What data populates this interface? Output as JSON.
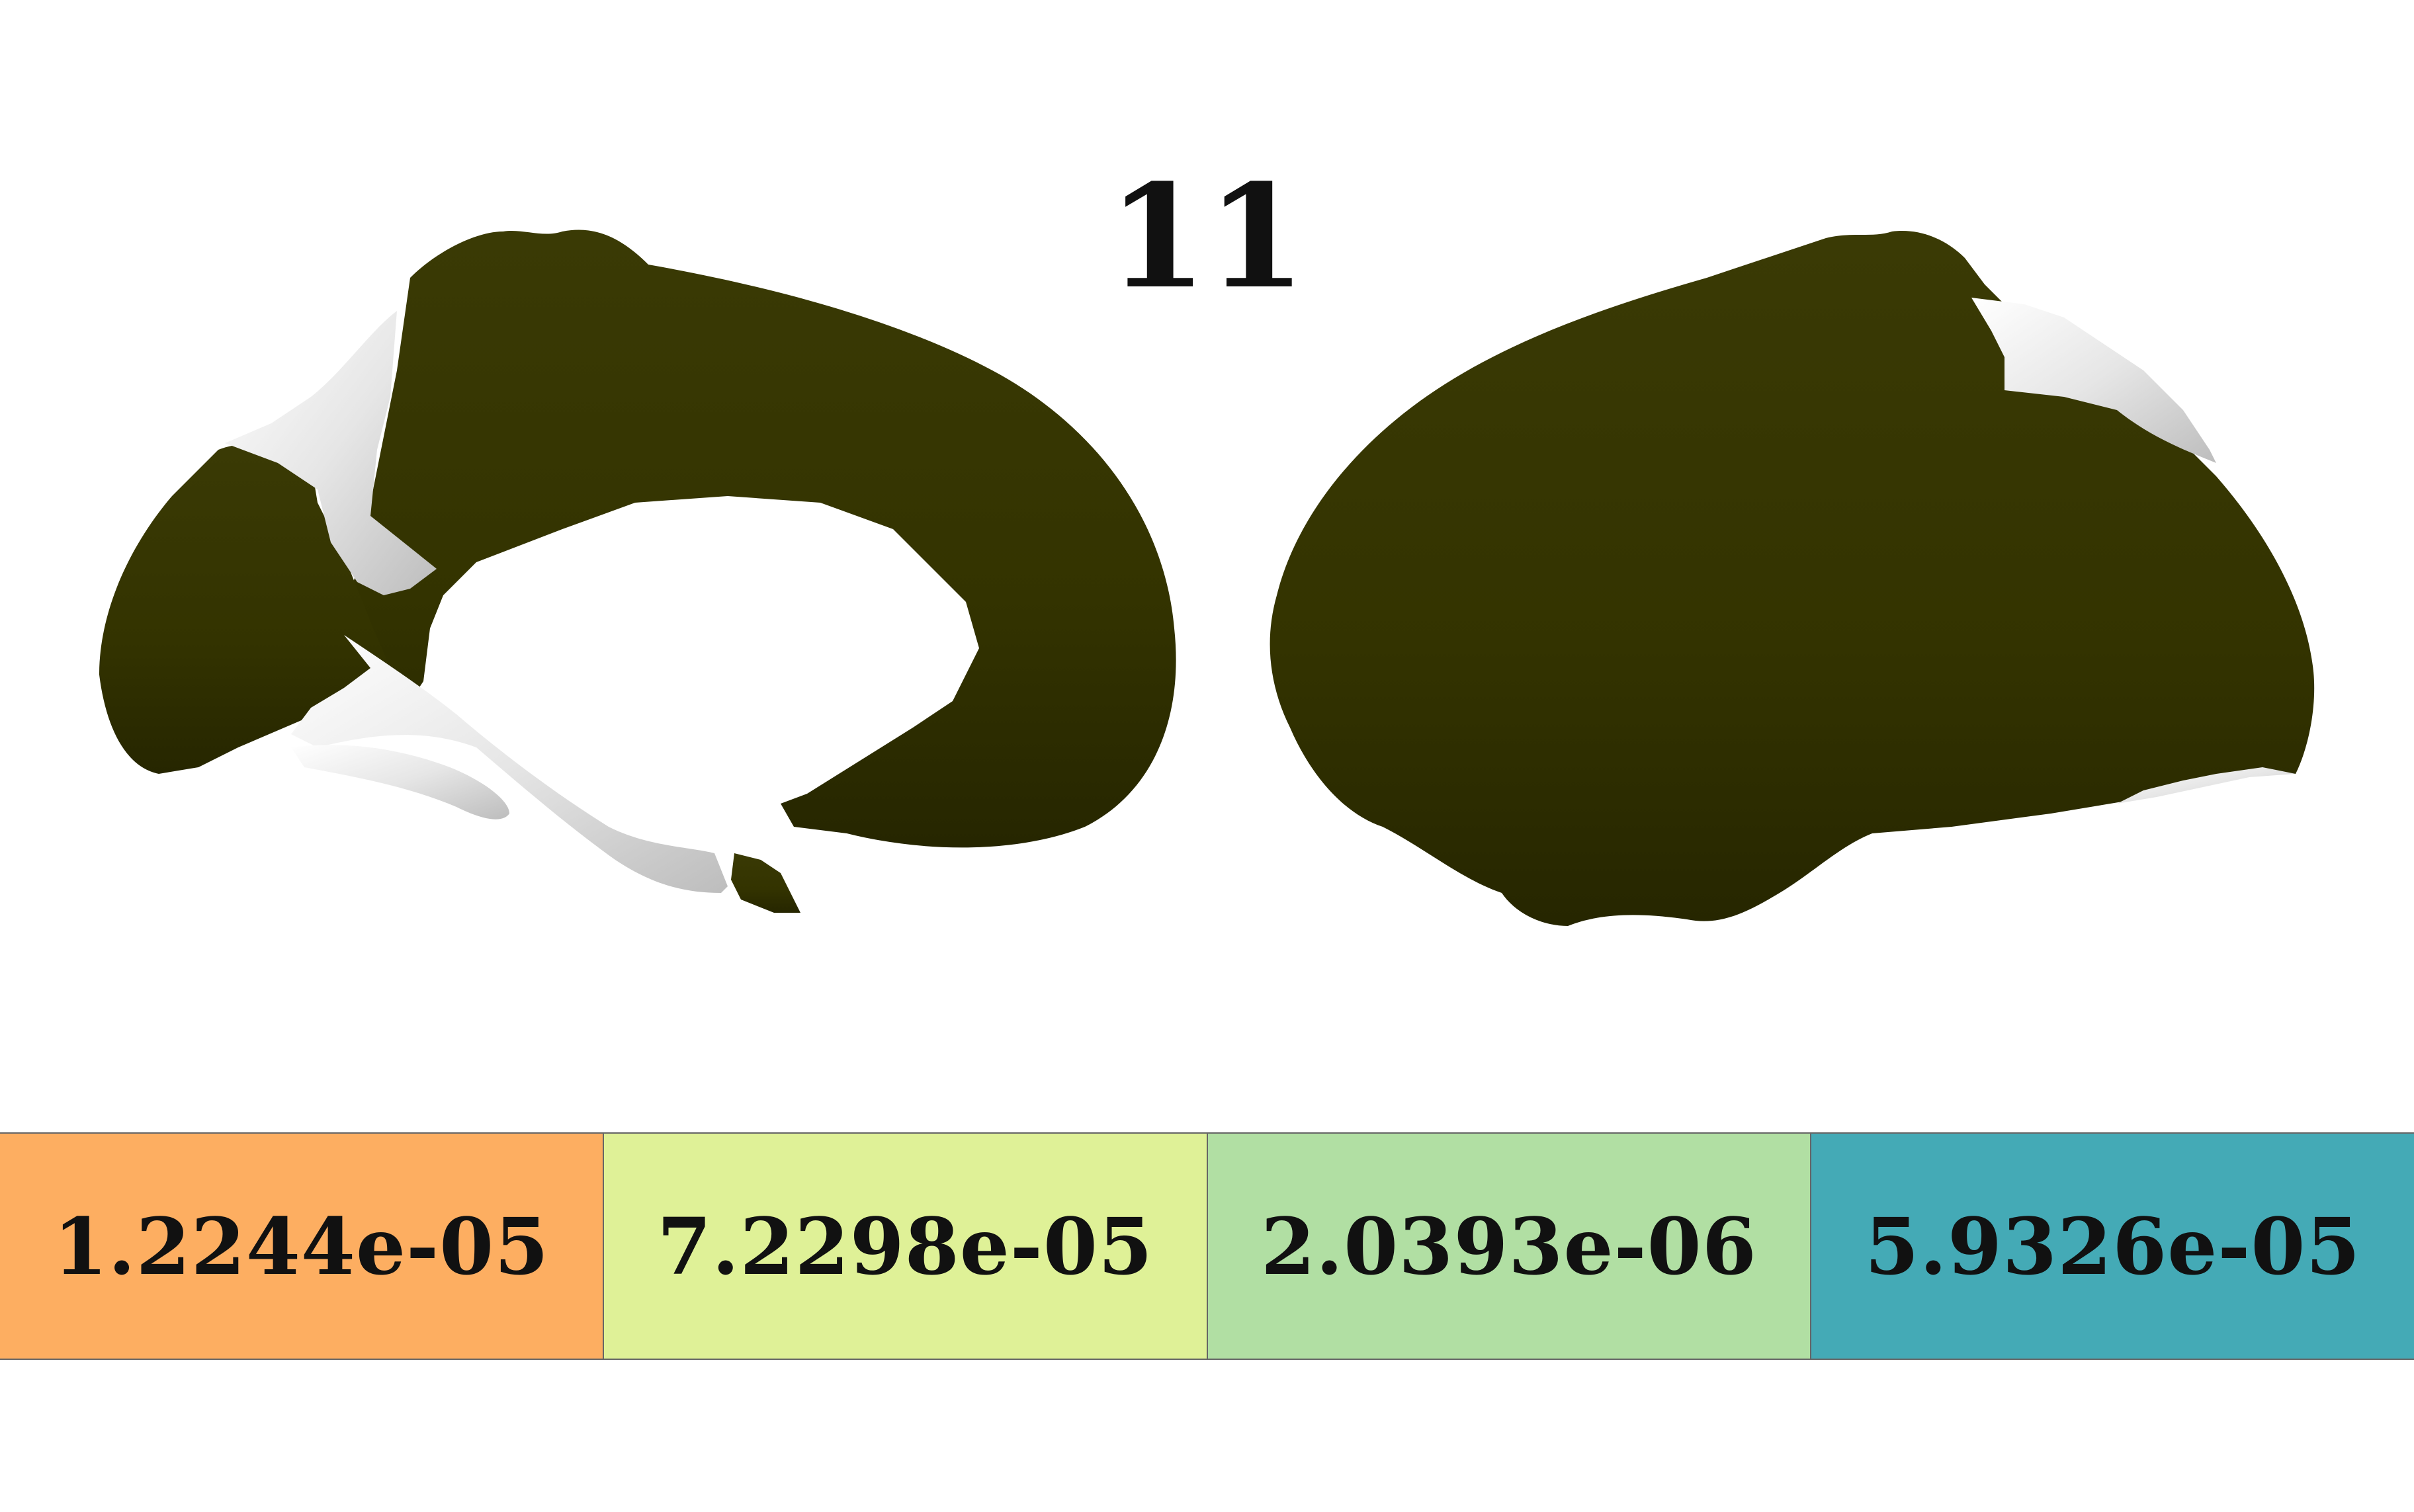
{
  "title": "11",
  "colors": {
    "active_region": "#333300",
    "inactive_region": "#ececec",
    "background": "#ffffff"
  },
  "views": [
    {
      "name": "medial",
      "hemisphere": "left"
    },
    {
      "name": "lateral",
      "hemisphere": "left"
    }
  ],
  "colorbar": [
    {
      "label": "1.2244e-05",
      "color": "#fdae61"
    },
    {
      "label": "7.2298e-05",
      "color": "#dff197"
    },
    {
      "label": "2.0393e-06",
      "color": "#b1dfa3"
    },
    {
      "label": "5.9326e-05",
      "color": "#44aab6"
    }
  ]
}
